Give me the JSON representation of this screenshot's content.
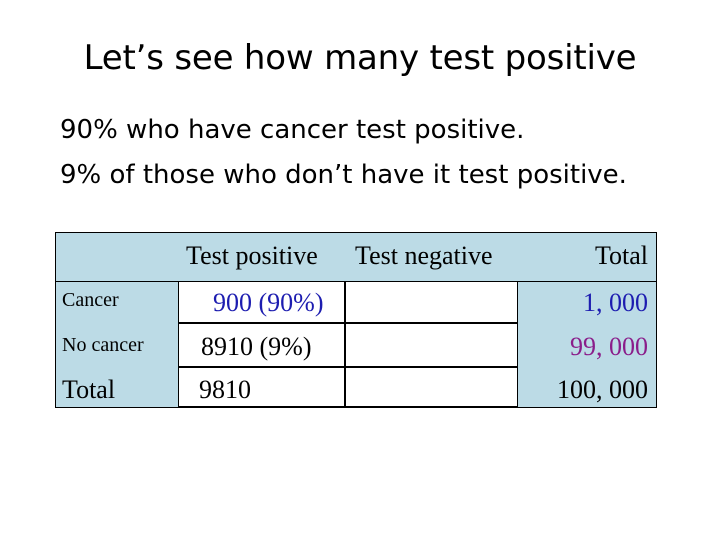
{
  "title": "Let’s see how many test positive",
  "bullets": [
    "90% who have cancer test positive.",
    "9% of those who don’t have it test positive."
  ],
  "table": {
    "headers": {
      "test_positive": "Test positive",
      "test_negative": "Test negative",
      "total": "Total"
    },
    "rows": [
      {
        "label": "Cancer",
        "positive": "900 (90%)",
        "negative": "",
        "total": "1, 000"
      },
      {
        "label": "No cancer",
        "positive": "8910 (9%)",
        "negative": "",
        "total": "99, 000"
      },
      {
        "label": "Total",
        "positive": "9810",
        "negative": "",
        "total": "100, 000"
      }
    ]
  },
  "colors": {
    "table_fill": "#bcdbe6",
    "cancer_total": "#1d1db0",
    "no_cancer_total": "#8a1d8a"
  }
}
